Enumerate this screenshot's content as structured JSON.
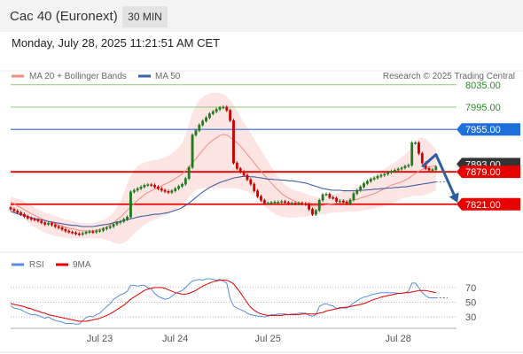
{
  "header": {
    "title": "Cac 40 (Euronext)",
    "timeframe": "30 MIN"
  },
  "datetime": "Monday, July 28, 2025 11:21:51 AM CET",
  "colors": {
    "bollinger": "#f28b82",
    "ma50": "#3f5fa8",
    "resistance_green": "#8fc87a",
    "blue_line": "#4a78d8",
    "red_line": "#e60000",
    "candle_up": "#1f7a1f",
    "candle_down": "#cc0000",
    "arrow": "#2d5fa0",
    "rsi": "#5b8be0",
    "rsi_ma": "#e60000"
  },
  "chart_data": {
    "type": "candlestick",
    "legend": [
      {
        "name": "MA 20 + Bollinger Bands",
        "color": "#f28b82"
      },
      {
        "name": "MA 50",
        "color": "#3f5fa8"
      }
    ],
    "credit": "Research © 2025 Trading Central",
    "ylim": [
      7735,
      8060
    ],
    "x_ticks": [
      "Jul 23",
      "Jul 24",
      "Jul 25",
      "Jul 28"
    ],
    "levels": [
      {
        "value": 8035.0,
        "label": "8035.00",
        "style": "green"
      },
      {
        "value": 7995.0,
        "label": "7995.00",
        "style": "green"
      },
      {
        "value": 7955.0,
        "label": "7955.00",
        "style": "blue"
      },
      {
        "value": 7879.0,
        "label": "7879.00",
        "style": "red"
      },
      {
        "value": 7821.0,
        "label": "7821.00",
        "style": "red"
      }
    ],
    "current_price": {
      "value": 7893.0,
      "label": "7893.00"
    },
    "closes": [
      7812,
      7809,
      7806,
      7803,
      7799,
      7796,
      7794,
      7793,
      7791,
      7788,
      7785,
      7787,
      7784,
      7781,
      7779,
      7776,
      7773,
      7771,
      7770,
      7768,
      7767,
      7769,
      7771,
      7772,
      7771,
      7773,
      7774,
      7777,
      7779,
      7781,
      7785,
      7788,
      7790,
      7794,
      7798,
      7843,
      7846,
      7849,
      7852,
      7855,
      7856,
      7855,
      7852,
      7849,
      7846,
      7844,
      7842,
      7845,
      7849,
      7853,
      7857,
      7867,
      7887,
      7945,
      7953,
      7963,
      7970,
      7976,
      7983,
      7987,
      7991,
      7994,
      7995,
      7989,
      7971,
      7895,
      7885,
      7879,
      7873,
      7865,
      7857,
      7845,
      7835,
      7828,
      7823,
      7823,
      7824,
      7825,
      7825,
      7826,
      7824,
      7822,
      7823,
      7822,
      7823,
      7822,
      7821,
      7812,
      7803,
      7810,
      7828,
      7838,
      7839,
      7833,
      7832,
      7826,
      7827,
      7825,
      7822,
      7829,
      7840,
      7846,
      7852,
      7858,
      7862,
      7866,
      7868,
      7871,
      7873,
      7875,
      7878,
      7880,
      7882,
      7884,
      7886,
      7889,
      7891,
      7931,
      7931,
      7912,
      7895,
      7885,
      7882,
      7883,
      7888
    ],
    "ma20": [
      7825,
      7822,
      7818,
      7815,
      7811,
      7808,
      7804,
      7801,
      7798,
      7795,
      7792,
      7790,
      7788,
      7786,
      7784,
      7782,
      7780,
      7778,
      7777,
      7776,
      7774,
      7773,
      7773,
      7773,
      7773,
      7774,
      7776,
      7778,
      7780,
      7784,
      7788,
      7793,
      7798,
      7804,
      7810,
      7816,
      7822,
      7828,
      7833,
      7838,
      7842,
      7845,
      7848,
      7851,
      7854,
      7857,
      7860,
      7863,
      7867,
      7871,
      7875,
      7881,
      7888,
      7895,
      7902,
      7910,
      7918,
      7925,
      7931,
      7936,
      7940,
      7944,
      7946,
      7945,
      7941,
      7936,
      7931,
      7925,
      7918,
      7910,
      7903,
      7895,
      7887,
      7880,
      7873,
      7866,
      7859,
      7852,
      7846,
      7840,
      7836,
      7832,
      7829,
      7826,
      7824,
      7822,
      7820,
      7819,
      7818,
      7818,
      7818,
      7819,
      7820,
      7821,
      7822,
      7823,
      7823,
      7824,
      7825,
      7826,
      7828,
      7830,
      7832,
      7834,
      7836,
      7838,
      7840,
      7843,
      7846,
      7849,
      7852,
      7855,
      7857,
      7859,
      7861,
      7864,
      7867,
      7872,
      7876,
      7880,
      7883,
      7886,
      7888,
      7889,
      7890
    ],
    "boll_upper": [
      7835,
      7833,
      7831,
      7829,
      7826,
      7822,
      7819,
      7815,
      7812,
      7809,
      7806,
      7804,
      7802,
      7800,
      7798,
      7796,
      7794,
      7792,
      7791,
      7789,
      7788,
      7787,
      7787,
      7787,
      7788,
      7789,
      7791,
      7793,
      7796,
      7800,
      7806,
      7815,
      7825,
      7840,
      7858,
      7872,
      7882,
      7889,
      7893,
      7896,
      7898,
      7899,
      7900,
      7901,
      7903,
      7905,
      7908,
      7912,
      7917,
      7923,
      7930,
      7945,
      7965,
      7985,
      7998,
      8007,
      8013,
      8017,
      8020,
      8021,
      8021,
      8020,
      8018,
      8014,
      8007,
      7998,
      7988,
      7978,
      7968,
      7958,
      7948,
      7938,
      7928,
      7918,
      7908,
      7898,
      7888,
      7878,
      7870,
      7862,
      7856,
      7851,
      7848,
      7846,
      7844,
      7842,
      7840,
      7838,
      7836,
      7834,
      7833,
      7833,
      7834,
      7836,
      7838,
      7840,
      7842,
      7844,
      7846,
      7848,
      7850,
      7852,
      7856,
      7860,
      7864,
      7868,
      7872,
      7876,
      7880,
      7884,
      7888,
      7892,
      7896,
      7900,
      7905,
      7910,
      7916,
      7925,
      7934,
      7940,
      7941,
      7938,
      7932,
      7926,
      7920
    ],
    "boll_lower": [
      7812,
      7808,
      7804,
      7799,
      7794,
      7789,
      7784,
      7780,
      7776,
      7773,
      7770,
      7768,
      7766,
      7764,
      7763,
      7762,
      7761,
      7760,
      7760,
      7760,
      7760,
      7760,
      7760,
      7760,
      7760,
      7760,
      7760,
      7759,
      7757,
      7755,
      7752,
      7750,
      7750,
      7752,
      7756,
      7762,
      7768,
      7774,
      7779,
      7784,
      7788,
      7791,
      7794,
      7797,
      7799,
      7801,
      7804,
      7807,
      7811,
      7815,
      7820,
      7826,
      7834,
      7841,
      7846,
      7849,
      7850,
      7850,
      7850,
      7850,
      7850,
      7850,
      7850,
      7850,
      7850,
      7850,
      7849,
      7848,
      7846,
      7844,
      7840,
      7836,
      7830,
      7824,
      7818,
      7813,
      7808,
      7804,
      7801,
      7799,
      7798,
      7797,
      7797,
      7797,
      7798,
      7798,
      7799,
      7800,
      7801,
      7802,
      7803,
      7803,
      7804,
      7805,
      7806,
      7806,
      7807,
      7807,
      7808,
      7808,
      7808,
      7808,
      7809,
      7810,
      7811,
      7812,
      7813,
      7815,
      7816,
      7818,
      7820,
      7822,
      7825,
      7828,
      7831,
      7833,
      7834,
      7835,
      7836,
      7836,
      7836,
      7838,
      7840,
      7843,
      7845
    ],
    "ma50": [
      7808,
      7806,
      7804,
      7802,
      7801,
      7799,
      7797,
      7795,
      7794,
      7793,
      7792,
      7790,
      7789,
      7788,
      7787,
      7786,
      7785,
      7784,
      7783,
      7783,
      7782,
      7781,
      7781,
      7781,
      7781,
      7782,
      7783,
      7784,
      7785,
      7786,
      7788,
      7789,
      7790,
      7792,
      7793,
      7795,
      7796,
      7798,
      7799,
      7800,
      7801,
      7802,
      7803,
      7803,
      7804,
      7805,
      7806,
      7808,
      7810,
      7812,
      7815,
      7819,
      7823,
      7828,
      7833,
      7838,
      7843,
      7847,
      7851,
      7854,
      7857,
      7860,
      7862,
      7864,
      7866,
      7868,
      7869,
      7870,
      7871,
      7871,
      7870,
      7870,
      7869,
      7868,
      7867,
      7866,
      7866,
      7865,
      7865,
      7864,
      7864,
      7863,
      7863,
      7862,
      7861,
      7860,
      7859,
      7857,
      7855,
      7853,
      7851,
      7849,
      7848,
      7847,
      7846,
      7846,
      7846,
      7845,
      7845,
      7845,
      7845,
      7845,
      7846,
      7846,
      7847,
      7847,
      7848,
      7848,
      7849,
      7849,
      7850,
      7850,
      7851,
      7851,
      7852,
      7852,
      7853,
      7854,
      7855,
      7856,
      7857,
      7858,
      7859,
      7860,
      7861
    ],
    "projection": [
      {
        "i": 120,
        "value": 7888
      },
      {
        "i": 124,
        "value": 7910
      },
      {
        "i": 130,
        "value": 7828
      }
    ],
    "rsi_panel": {
      "label": "RSI",
      "ma_label": "9MA",
      "ylim": [
        18,
        88
      ],
      "levels": [
        70,
        50,
        30
      ],
      "rsi": [
        45,
        42,
        41,
        40,
        37,
        35,
        33,
        33,
        32,
        30,
        28,
        30,
        27,
        25,
        24,
        23,
        21,
        21,
        21,
        20,
        20,
        25,
        29,
        31,
        30,
        33,
        35,
        40,
        44,
        48,
        54,
        57,
        60,
        62,
        65,
        73,
        73,
        72,
        73,
        73,
        70,
        68,
        62,
        58,
        56,
        54,
        55,
        58,
        62,
        64,
        66,
        70,
        75,
        79,
        80,
        81,
        80,
        82,
        82,
        81,
        80,
        81,
        79,
        76,
        55,
        45,
        42,
        40,
        38,
        35,
        33,
        32,
        31,
        31,
        30,
        31,
        33,
        33,
        34,
        34,
        34,
        33,
        34,
        34,
        35,
        35,
        35,
        32,
        31,
        33,
        44,
        47,
        48,
        46,
        45,
        41,
        43,
        42,
        42,
        45,
        49,
        52,
        55,
        57,
        58,
        60,
        61,
        62,
        63,
        63,
        63,
        63,
        63,
        62,
        62,
        63,
        65,
        76,
        76,
        70,
        63,
        59,
        56,
        56,
        56
      ],
      "ma9": [
        48,
        47,
        46,
        45,
        44,
        42,
        41,
        39,
        38,
        36,
        35,
        33,
        32,
        31,
        30,
        29,
        28,
        27,
        26,
        25,
        24,
        24,
        24,
        25,
        26,
        27,
        28,
        30,
        32,
        34,
        37,
        40,
        43,
        46,
        50,
        54,
        57,
        60,
        63,
        66,
        68,
        69,
        70,
        70,
        70,
        69,
        67,
        65,
        63,
        62,
        61,
        61,
        62,
        64,
        66,
        69,
        72,
        74,
        76,
        78,
        79,
        80,
        80,
        80,
        78,
        75,
        69,
        63,
        56,
        49,
        43,
        39,
        36,
        34,
        33,
        32,
        32,
        32,
        32,
        32,
        33,
        33,
        33,
        33,
        33,
        34,
        34,
        34,
        34,
        34,
        35,
        36,
        38,
        39,
        40,
        41,
        42,
        43,
        43,
        44,
        45,
        46,
        47,
        48,
        50,
        52,
        54,
        55,
        57,
        58,
        59,
        60,
        61,
        62,
        62,
        63,
        63,
        64,
        65,
        66,
        66,
        66,
        65,
        64,
        63
      ]
    }
  }
}
